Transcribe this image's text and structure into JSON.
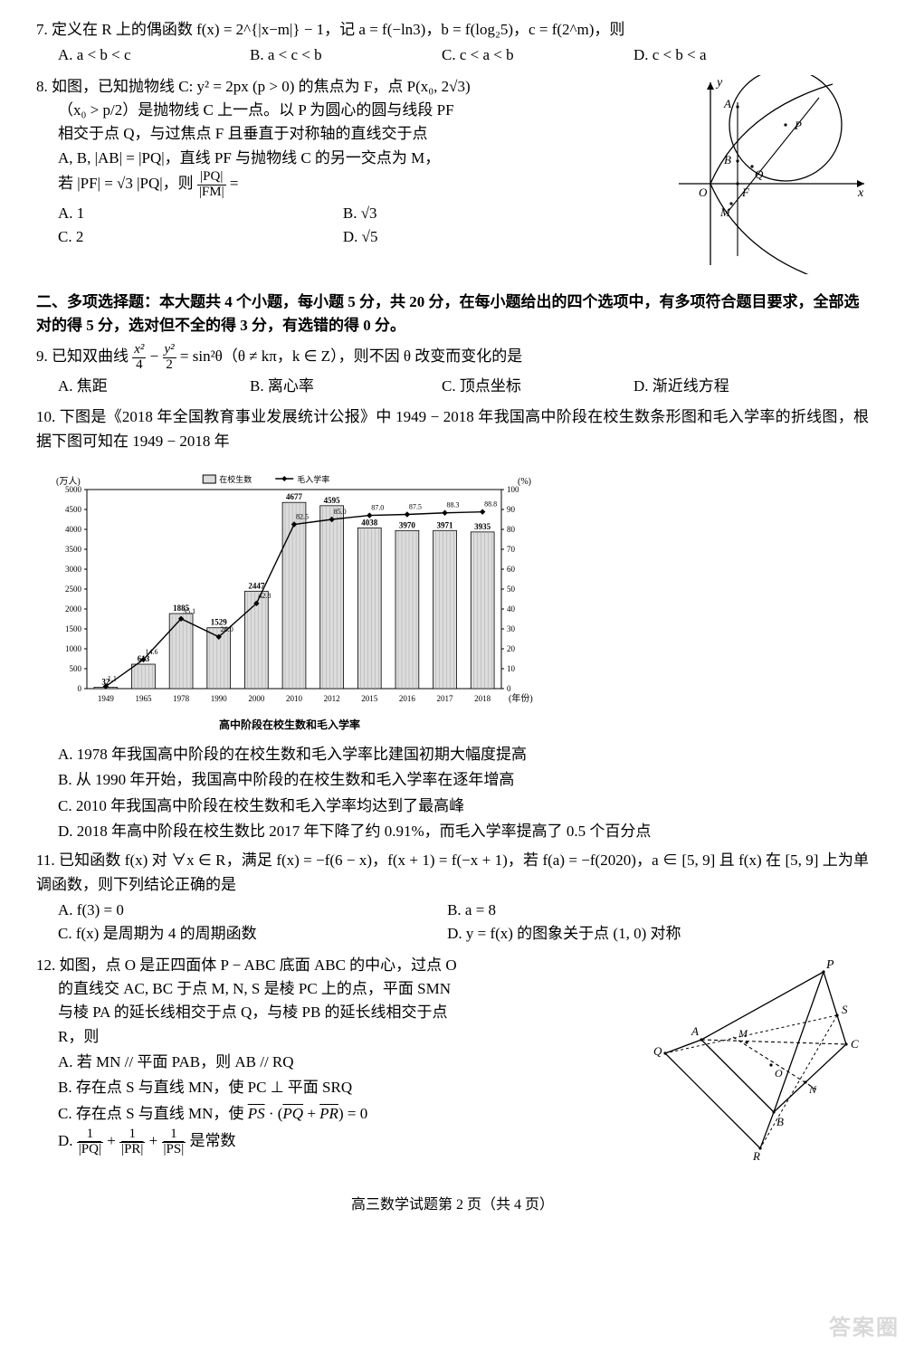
{
  "q7": {
    "stem": "7. 定义在 R 上的偶函数 f(x) = 2^{|x−m|} − 1，记 a = f(−ln3)，b = f(log₂5)，c = f(2^m)，则",
    "A": "A. a < b < c",
    "B": "B. a < c < b",
    "C": "C. c < a < b",
    "D": "D. c < b < a"
  },
  "q8": {
    "line1": "8. 如图，已知抛物线 C: y² = 2px (p > 0) 的焦点为 F，点 P(x₀, 2√3)",
    "line2": "（x₀ > p/2）是抛物线 C 上一点。以 P 为圆心的圆与线段 PF",
    "line3": "相交于点 Q，与过焦点 F 且垂直于对称轴的直线交于点",
    "line4": "A, B, |AB| = |PQ|，直线 PF 与抛物线 C 的另一交点为 M，",
    "line5_pre": "若 |PF| = √3 |PQ|，则 ",
    "line5_frac_n": "|PQ|",
    "line5_frac_d": "|FM|",
    "line5_post": " =",
    "A": "A. 1",
    "B": "B. √3",
    "C": "C. 2",
    "D": "D. √5",
    "fig": {
      "labels": {
        "y": "y",
        "x": "x",
        "O": "O",
        "F": "F",
        "A": "A",
        "B": "B",
        "P": "P",
        "Q": "Q",
        "M": "M"
      },
      "axis_color": "#000",
      "curve_color": "#000"
    }
  },
  "section2": "二、多项选择题：本大题共 4 个小题，每小题 5 分，共 20 分，在每小题给出的四个选项中，有多项符合题目要求，全部选对的得 5 分，选对但不全的得 3 分，有选错的得 0 分。",
  "q9": {
    "stem_pre": "9. 已知双曲线 ",
    "frac1_n": "x²",
    "frac1_d": "4",
    "mid": " − ",
    "frac2_n": "y²",
    "frac2_d": "2",
    "stem_post": " = sin²θ（θ ≠ kπ，k ∈ Z），则不因 θ 改变而变化的是",
    "A": "A. 焦距",
    "B": "B. 离心率",
    "C": "C. 顶点坐标",
    "D": "D. 渐近线方程"
  },
  "q10": {
    "stem": "10. 下图是《2018 年全国教育事业发展统计公报》中 1949 − 2018 年我国高中阶段在校生数条形图和毛入学率的折线图，根据下图可知在 1949 − 2018 年",
    "A": "A. 1978 年我国高中阶段的在校生数和毛入学率比建国初期大幅度提高",
    "B": "B. 从 1990 年开始，我国高中阶段的在校生数和毛入学率在逐年增高",
    "C": "C. 2010 年我国高中阶段在校生数和毛入学率均达到了最高峰",
    "D": "D. 2018 年高中阶段在校生数比 2017 年下降了约 0.91%，而毛入学率提高了 0.5 个百分点",
    "chart": {
      "type": "bar+line",
      "title": "高中阶段在校生数和毛入学率",
      "y1_label": "(万人)",
      "y2_label": "(%)",
      "x_label": "(年份)",
      "legend_bar": "在校生数",
      "legend_line": "毛入学率",
      "categories": [
        "1949",
        "1965",
        "1978",
        "1990",
        "2000",
        "2010",
        "2012",
        "2015",
        "2016",
        "2017",
        "2018"
      ],
      "bars": [
        32,
        613,
        1885,
        1529,
        2447,
        4677,
        4595,
        4038,
        3970,
        3971,
        3935
      ],
      "bar_labels": [
        "32",
        "613",
        "1885",
        "1529",
        "2447",
        "4677",
        "4595",
        "4038",
        "3970",
        "3971",
        "3935"
      ],
      "line": [
        1.1,
        14.6,
        35.1,
        26.0,
        42.8,
        82.5,
        85.0,
        87.0,
        87.5,
        88.3,
        88.8
      ],
      "line_labels": [
        "1.1",
        "14.6",
        "35.1",
        "26.0",
        "42.8",
        "82.5",
        "85.0",
        "87.0",
        "87.5",
        "88.3",
        "88.8"
      ],
      "y1_lim": [
        0,
        5000
      ],
      "y1_step": 500,
      "y2_lim": [
        0,
        100
      ],
      "y2_step": 10,
      "bar_fill": "#dcdcdc",
      "bar_hatch": "#9c9c9c",
      "line_color": "#000",
      "marker": "diamond",
      "border_color": "#000",
      "grid_color": "#c0c0c0",
      "font_size": 9
    }
  },
  "q11": {
    "stem": "11. 已知函数 f(x) 对 ∀x ∈ R，满足 f(x) = −f(6 − x)，f(x + 1) = f(−x + 1)，若 f(a) = −f(2020)，a ∈ [5, 9] 且 f(x) 在 [5, 9] 上为单调函数，则下列结论正确的是",
    "A": "A. f(3) = 0",
    "B": "B. a = 8",
    "C": "C. f(x) 是周期为 4 的周期函数",
    "D": "D. y = f(x) 的图象关于点 (1, 0) 对称"
  },
  "q12": {
    "line1": "12. 如图，点 O 是正四面体 P − ABC 底面 ABC 的中心，过点 O",
    "line2": "的直线交 AC, BC 于点 M, N, S 是棱 PC 上的点，平面 SMN",
    "line3": "与棱 PA 的延长线相交于点 Q，与棱 PB 的延长线相交于点",
    "line4": "R，则",
    "A": "A. 若 MN // 平面 PAB，则 AB // RQ",
    "B": "B. 存在点 S 与直线 MN，使 PC ⊥ 平面 SRQ",
    "Cpre": "C. 存在点 S 与直线 MN，使 ",
    "Cvec1": "PS",
    "Cdot": " · (",
    "Cvec2": "PQ",
    "Cplus": " + ",
    "Cvec3": "PR",
    "Cpost": ") = 0",
    "Dpre": "D. ",
    "Dfrac_n": "1",
    "Dfrac_d1": "|PQ|",
    "Dfrac_d2": "|PR|",
    "Dfrac_d3": "|PS|",
    "Dplus": " + ",
    "Dpost": " 是常数",
    "fig": {
      "labels": {
        "P": "P",
        "A": "A",
        "B": "B",
        "C": "C",
        "O": "O",
        "M": "M",
        "N": "N",
        "S": "S",
        "Q": "Q",
        "R": "R"
      },
      "stroke": "#000"
    }
  },
  "footer": "高三数学试题第 2 页（共 4 页）",
  "watermark": "答案圈"
}
